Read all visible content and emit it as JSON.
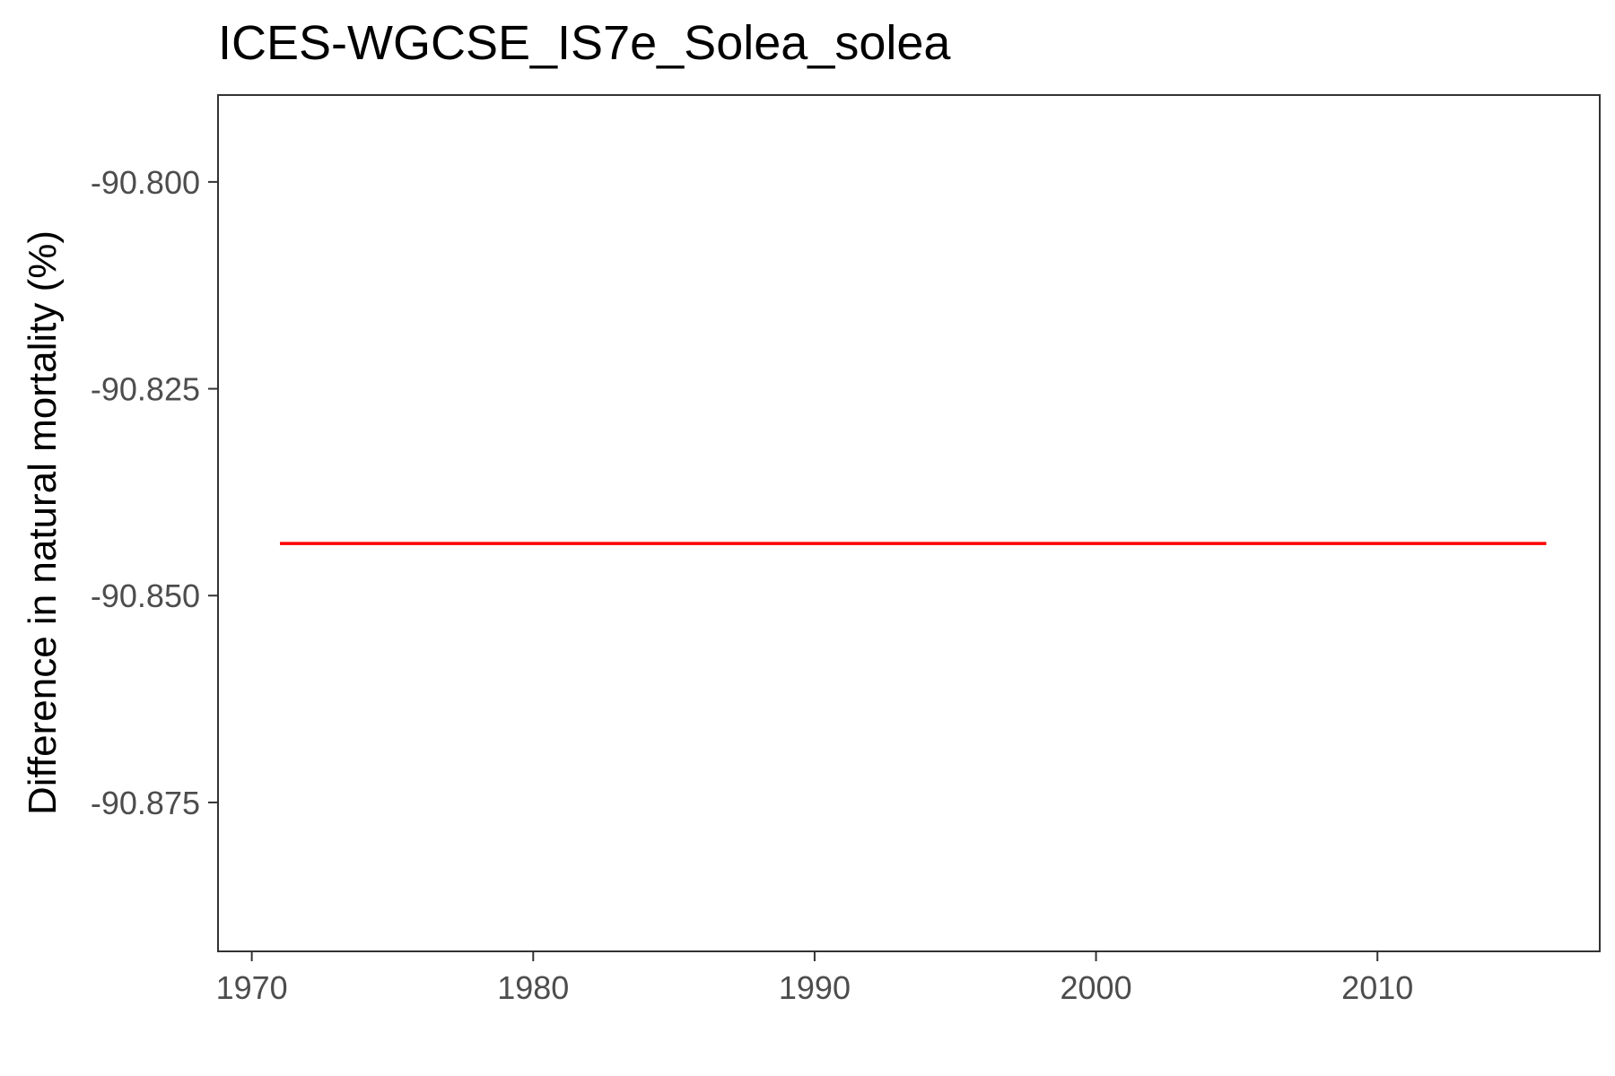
{
  "chart_data": {
    "type": "line",
    "title": "ICES-WGCSE_IS7e_Solea_solea",
    "xlabel": "",
    "ylabel": "Difference in natural mortality (%)",
    "xlim": [
      1968.8,
      2017.9
    ],
    "ylim": [
      -90.893,
      -90.7895
    ],
    "x_ticks": [
      1970,
      1980,
      1990,
      2000,
      2010
    ],
    "y_ticks": [
      -90.8,
      -90.825,
      -90.85,
      -90.875
    ],
    "y_tick_labels": [
      "-90.800",
      "-90.825",
      "-90.850",
      "-90.875"
    ],
    "grid": false,
    "legend": "none",
    "series": [
      {
        "color": "#ff0000",
        "x": [
          1971,
          1975,
          1980,
          1985,
          1990,
          1995,
          2000,
          2005,
          2010,
          2016
        ],
        "y": [
          -90.8437,
          -90.8437,
          -90.8437,
          -90.8437,
          -90.8437,
          -90.8437,
          -90.8437,
          -90.8437,
          -90.8437,
          -90.8437
        ]
      }
    ]
  }
}
